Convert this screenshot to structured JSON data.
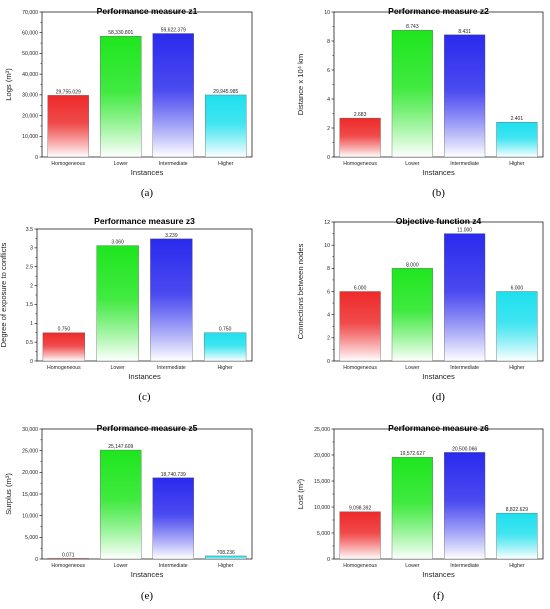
{
  "chart_data": [
    {
      "type": "bar",
      "panel_label": "(a)",
      "title": "Performance measure z1",
      "xlabel": "Instances",
      "ylabel": "Logs (m³)",
      "categories": [
        "Homogeneous",
        "Lower",
        "Intermediate",
        "Higher"
      ],
      "values": [
        29755.029,
        58330.801,
        59622.379,
        29945.985
      ],
      "value_labels": [
        "29,755.029",
        "58,330.801",
        "59,622.379",
        "29,945.985"
      ],
      "ylim": [
        0,
        70000
      ],
      "yticks": [
        0,
        10000,
        20000,
        30000,
        40000,
        50000,
        60000,
        70000
      ],
      "ytick_labels": [
        "0",
        "10,000",
        "20,000",
        "30,000",
        "40,000",
        "50,000",
        "60,000",
        "70,000"
      ],
      "colors": [
        "#ee2a2a",
        "#1ee61e",
        "#2a2aee",
        "#1ee0ee"
      ]
    },
    {
      "type": "bar",
      "panel_label": "(b)",
      "title": "Performance measure z2",
      "xlabel": "Instances",
      "ylabel": "Distance x 10⁴ km",
      "categories": [
        "Homogeneous",
        "Lower",
        "Intermediate",
        "Higher"
      ],
      "values": [
        2.683,
        8.743,
        8.431,
        2.401
      ],
      "value_labels": [
        "2.683",
        "8.743",
        "8.431",
        "2.401"
      ],
      "ylim": [
        0,
        10
      ],
      "yticks": [
        0,
        2,
        4,
        6,
        8,
        10
      ],
      "ytick_labels": [
        "0",
        "2",
        "4",
        "6",
        "8",
        "10"
      ],
      "colors": [
        "#ee2a2a",
        "#1ee61e",
        "#2a2aee",
        "#1ee0ee"
      ]
    },
    {
      "type": "bar",
      "panel_label": "(c)",
      "title": "Performance measure z3",
      "xlabel": "Instances",
      "ylabel": "Degree of exposure to conflicts",
      "categories": [
        "Homogeneous",
        "Lower",
        "Intermediate",
        "Higher"
      ],
      "values": [
        0.75,
        3.06,
        3.239,
        0.75
      ],
      "value_labels": [
        "0.750",
        "3.060",
        "3.239",
        "0.750"
      ],
      "ylim": [
        0,
        3.5
      ],
      "yticks": [
        0,
        0.5,
        1,
        1.5,
        2,
        2.5,
        3,
        3.5
      ],
      "ytick_labels": [
        "0",
        "0.5",
        "1",
        "1.5",
        "2",
        "2.5",
        "3",
        "3.5"
      ],
      "colors": [
        "#ee2a2a",
        "#1ee61e",
        "#2a2aee",
        "#1ee0ee"
      ]
    },
    {
      "type": "bar",
      "panel_label": "(d)",
      "title": "Objective function z4",
      "xlabel": "Instances",
      "ylabel": "Connections between nodes",
      "categories": [
        "Homogeneous",
        "Lower",
        "Intermediate",
        "Higher"
      ],
      "values": [
        6,
        8,
        11,
        6
      ],
      "value_labels": [
        "6.000",
        "8.000",
        "11.000",
        "6.000"
      ],
      "ylim": [
        0,
        12
      ],
      "yticks": [
        0,
        2,
        4,
        6,
        8,
        10,
        12
      ],
      "ytick_labels": [
        "0",
        "2",
        "4",
        "6",
        "8",
        "10",
        "12"
      ],
      "colors": [
        "#ee2a2a",
        "#1ee61e",
        "#2a2aee",
        "#1ee0ee"
      ]
    },
    {
      "type": "bar",
      "panel_label": "(e)",
      "title": "Performance measure z5",
      "xlabel": "Instances",
      "ylabel": "Surplus (m³)",
      "categories": [
        "Homogeneous",
        "Lower",
        "Intermediate",
        "Higher"
      ],
      "values": [
        0.071,
        25147.609,
        18740.739,
        708.236
      ],
      "value_labels": [
        "0.071",
        "25,147.609",
        "18,740.739",
        "708.236"
      ],
      "ylim": [
        0,
        30000
      ],
      "yticks": [
        0,
        5000,
        10000,
        15000,
        20000,
        25000,
        30000
      ],
      "ytick_labels": [
        "0",
        "5,000",
        "10,000",
        "15,000",
        "20,000",
        "25,000",
        "30,000"
      ],
      "colors": [
        "#ee2a2a",
        "#1ee61e",
        "#2a2aee",
        "#1ee0ee"
      ]
    },
    {
      "type": "bar",
      "panel_label": "(f)",
      "title": "Performance measure z6",
      "xlabel": "Instances",
      "ylabel": "Lost (m³)",
      "categories": [
        "Homogeneous",
        "Lower",
        "Intermediate",
        "Higher"
      ],
      "values": [
        9098.392,
        19572.627,
        20500.066,
        8822.629
      ],
      "value_labels": [
        "9,098.392",
        "19,572.627",
        "20,500.066",
        "8,822.629"
      ],
      "ylim": [
        0,
        25000
      ],
      "yticks": [
        0,
        5000,
        10000,
        15000,
        20000,
        25000
      ],
      "ytick_labels": [
        "0",
        "5,000",
        "10,000",
        "15,000",
        "20,000",
        "25,000"
      ],
      "colors": [
        "#ee2a2a",
        "#1ee61e",
        "#2a2aee",
        "#1ee0ee"
      ]
    }
  ]
}
